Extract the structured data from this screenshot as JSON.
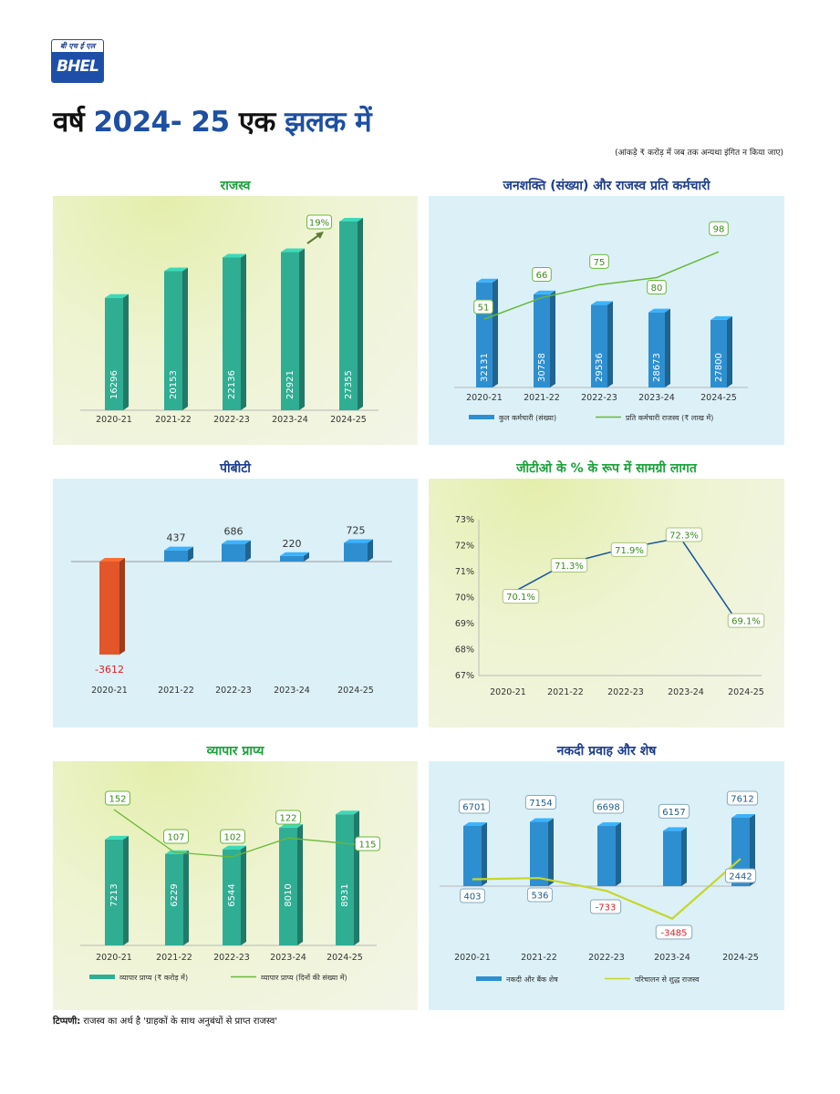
{
  "header": {
    "logo_hindi": "बी एच ई एल",
    "logo_text": "BHEL",
    "title_part1": "वर्ष",
    "title_part2": "2024- 25",
    "title_part3": "एक",
    "title_part4": "झलक में",
    "unit_note": "(आंकड़े ₹ करोड़ में जब तक अन्यथा इंगित न किया जाए)"
  },
  "footnote": {
    "label": "टिप्पणी:",
    "text": " राजस्व का अर्थ है 'ग्राहकों के साथ अनुबंधों से प्राप्त राजस्व'"
  },
  "colors": {
    "green_title": "#1aa33a",
    "blue_title": "#1e3f8f",
    "teal_bar": "#2fae94",
    "blue_bar": "#2e8fd0",
    "orange_bar": "#e2562a",
    "green_line": "#6ab83a",
    "yellow_line": "#c6d62a",
    "navy_line": "#1e5a9c",
    "negative": "#e0202a"
  },
  "chart_data": [
    {
      "type": "bar",
      "title": "राजस्व",
      "categories": [
        "2020-21",
        "2021-22",
        "2022-23",
        "2023-24",
        "2024-25"
      ],
      "series": [
        {
          "values": [
            16296,
            20153,
            22136,
            22921,
            27355
          ]
        }
      ],
      "annotation": "19%"
    },
    {
      "type": "bar+line",
      "title": "जनशक्ति (संख्या) और राजस्व प्रति कर्मचारी",
      "categories": [
        "2020-21",
        "2021-22",
        "2022-23",
        "2023-24",
        "2024-25"
      ],
      "series": [
        {
          "name": "कुल कर्मचारी (संख्या)",
          "type": "bar",
          "values": [
            32131,
            30758,
            29536,
            28673,
            27800
          ]
        },
        {
          "name": "प्रति कर्मचारी राजस्व (₹ लाख में)",
          "type": "line",
          "values": [
            51,
            66,
            75,
            80,
            98
          ]
        }
      ]
    },
    {
      "type": "bar",
      "title": "पीबीटी",
      "categories": [
        "2020-21",
        "2021-22",
        "2022-23",
        "2023-24",
        "2024-25"
      ],
      "series": [
        {
          "values": [
            -3612,
            437,
            686,
            220,
            725
          ]
        }
      ]
    },
    {
      "type": "line",
      "title": "जीटीओ के % के रूप में सामग्री लागत",
      "categories": [
        "2020-21",
        "2021-22",
        "2022-23",
        "2023-24",
        "2024-25"
      ],
      "series": [
        {
          "values": [
            70.1,
            71.3,
            71.9,
            72.3,
            69.1
          ],
          "labels": [
            "70.1%",
            "71.3%",
            "71.9%",
            "72.3%",
            "69.1%"
          ]
        }
      ],
      "ylim": [
        67,
        73
      ],
      "yticks": [
        "67%",
        "68%",
        "69%",
        "70%",
        "71%",
        "72%",
        "73%"
      ]
    },
    {
      "type": "bar+line",
      "title": "व्यापार प्राप्य",
      "categories": [
        "2020-21",
        "2021-22",
        "2022-23",
        "2023-24",
        "2024-25"
      ],
      "series": [
        {
          "name": "व्यापार प्राप्य (₹ करोड़ में)",
          "type": "bar",
          "values": [
            7213,
            6229,
            6544,
            8010,
            8931
          ]
        },
        {
          "name": "व्यापार प्राप्य (दिनों की संख्या में)",
          "type": "line",
          "values": [
            152,
            107,
            102,
            122,
            115
          ]
        }
      ]
    },
    {
      "type": "bar+line",
      "title": "नकदी प्रवाह और शेष",
      "categories": [
        "2020-21",
        "2021-22",
        "2022-23",
        "2023-24",
        "2024-25"
      ],
      "series": [
        {
          "name": "नकदी और बैंक शेष",
          "type": "bar",
          "values": [
            6701,
            7154,
            6698,
            6157,
            7612
          ]
        },
        {
          "name": "परिचालन से शुद्ध राजस्व",
          "type": "line",
          "values": [
            403,
            536,
            -733,
            -3485,
            2442
          ]
        }
      ]
    }
  ]
}
